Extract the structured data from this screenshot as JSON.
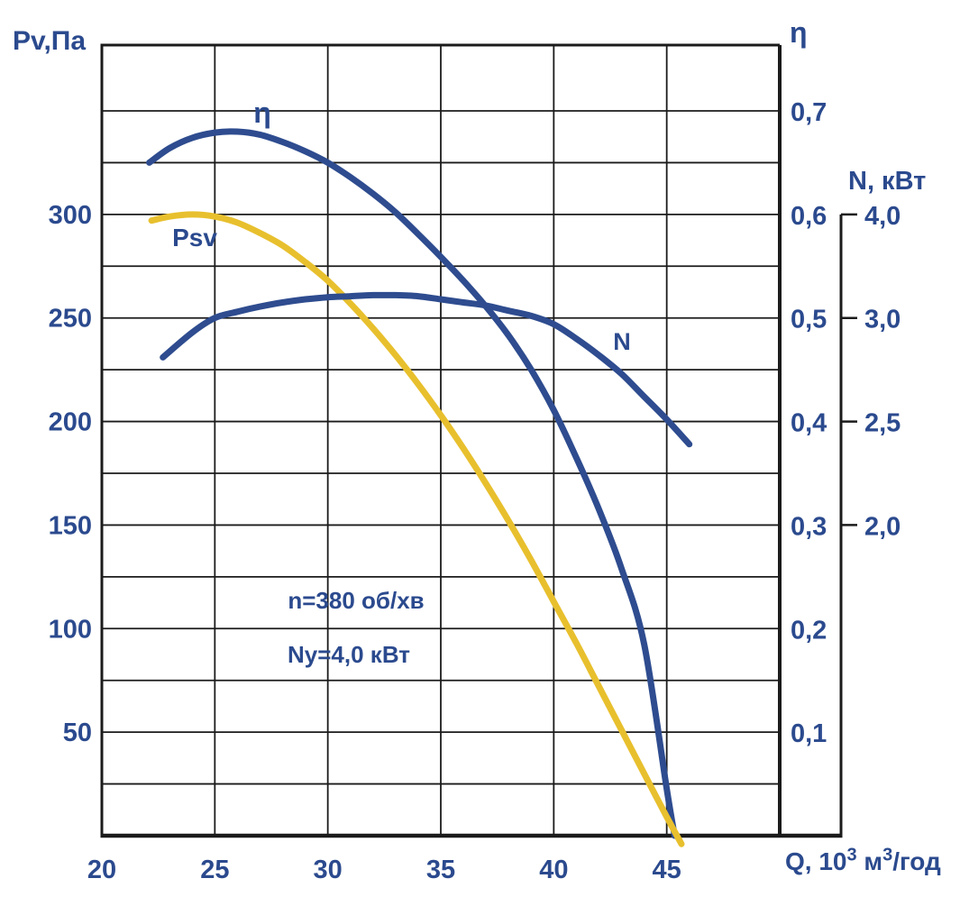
{
  "colors": {
    "navy": "#2E4C8F",
    "gold": "#E8C02E",
    "grid": "#1B1B1B",
    "text": "#2B4A8E",
    "background": "#FFFFFF"
  },
  "chart_data": {
    "type": "line",
    "title": "",
    "x_axis": {
      "title_parts": [
        "Q, 10",
        "3",
        " м",
        "3",
        "/год"
      ],
      "ticks": [
        {
          "label": "20",
          "q": 20
        },
        {
          "label": "25",
          "q": 25
        },
        {
          "label": "30",
          "q": 30
        },
        {
          "label": "35",
          "q": 35
        },
        {
          "label": "40",
          "q": 40
        },
        {
          "label": "45",
          "q": 45
        }
      ],
      "grid_q": [
        25,
        30,
        35,
        40,
        45
      ],
      "range": [
        20,
        50
      ],
      "grid": "on"
    },
    "y_left": {
      "label": "Pv,Па",
      "units": "Па",
      "range": [
        0,
        380
      ],
      "ticks": [
        {
          "label": "300",
          "eta": 0.6
        },
        {
          "label": "250",
          "eta": 0.5
        },
        {
          "label": "200",
          "eta": 0.4
        },
        {
          "label": "150",
          "eta": 0.3
        },
        {
          "label": "100",
          "eta": 0.2
        },
        {
          "label": "50",
          "eta": 0.1
        }
      ]
    },
    "y_right_eta": {
      "label": "η",
      "range": [
        0,
        0.76
      ],
      "grid_step": 0.05,
      "ticks": [
        {
          "label": "0,7",
          "v": 0.7
        },
        {
          "label": "0,6",
          "v": 0.6
        },
        {
          "label": "0,5",
          "v": 0.5
        },
        {
          "label": "0,4",
          "v": 0.4
        },
        {
          "label": "0,3",
          "v": 0.3
        },
        {
          "label": "0,2",
          "v": 0.2
        },
        {
          "label": "0,1",
          "v": 0.1
        }
      ]
    },
    "y_right_n": {
      "label": "N, кВт",
      "ticks": [
        {
          "label": "4,0",
          "n": 4.0
        },
        {
          "label": "3,0",
          "n": 3.0
        },
        {
          "label": "2,5",
          "n": 2.5
        },
        {
          "label": "2,0",
          "n": 2.0
        }
      ],
      "anchors": [
        {
          "n": 2.0,
          "eta": 0.3
        },
        {
          "n": 2.5,
          "eta": 0.4
        },
        {
          "n": 3.0,
          "eta": 0.5
        },
        {
          "n": 4.0,
          "eta": 0.6
        }
      ]
    },
    "series": [
      {
        "id": "eta",
        "name": "η",
        "axis": "eta",
        "color": "#2E4C8F",
        "points": [
          [
            22.1,
            0.65
          ],
          [
            23,
            0.664
          ],
          [
            24,
            0.674
          ],
          [
            25,
            0.679
          ],
          [
            26,
            0.68
          ],
          [
            27,
            0.677
          ],
          [
            28,
            0.67
          ],
          [
            29,
            0.661
          ],
          [
            30,
            0.65
          ],
          [
            31,
            0.636
          ],
          [
            32,
            0.62
          ],
          [
            33,
            0.602
          ],
          [
            34,
            0.581
          ],
          [
            35,
            0.559
          ],
          [
            36,
            0.536
          ],
          [
            37,
            0.511
          ],
          [
            38,
            0.483
          ],
          [
            39,
            0.45
          ],
          [
            40,
            0.411
          ],
          [
            41,
            0.365
          ],
          [
            42,
            0.315
          ],
          [
            43,
            0.258
          ],
          [
            44,
            0.185
          ],
          [
            45,
            0.045
          ],
          [
            45.35,
            0.0
          ]
        ]
      },
      {
        "id": "psv",
        "name": "Psv",
        "axis": "pv",
        "color": "#E8C02E",
        "points": [
          [
            22.2,
            297
          ],
          [
            23,
            299
          ],
          [
            24,
            300
          ],
          [
            25,
            299
          ],
          [
            26,
            296
          ],
          [
            27,
            291
          ],
          [
            28,
            285
          ],
          [
            29,
            277
          ],
          [
            30,
            268
          ],
          [
            31,
            257
          ],
          [
            32,
            245
          ],
          [
            33,
            232
          ],
          [
            34,
            218
          ],
          [
            35,
            203
          ],
          [
            36,
            187
          ],
          [
            37,
            170
          ],
          [
            38,
            152
          ],
          [
            39,
            133
          ],
          [
            40,
            113
          ],
          [
            41,
            93
          ],
          [
            42,
            72
          ],
          [
            43,
            51
          ],
          [
            44,
            30
          ],
          [
            45,
            9
          ],
          [
            45.65,
            -4
          ]
        ]
      },
      {
        "id": "n",
        "name": "N",
        "axis": "n",
        "color": "#2E4C8F",
        "points": [
          [
            22.7,
            2.81
          ],
          [
            24,
            2.93
          ],
          [
            25,
            3.0
          ],
          [
            26,
            3.06
          ],
          [
            27,
            3.11
          ],
          [
            28,
            3.15
          ],
          [
            29,
            3.18
          ],
          [
            30,
            3.2
          ],
          [
            31,
            3.21
          ],
          [
            32,
            3.22
          ],
          [
            33,
            3.22
          ],
          [
            34,
            3.21
          ],
          [
            35,
            3.18
          ],
          [
            36,
            3.15
          ],
          [
            37,
            3.12
          ],
          [
            38,
            3.07
          ],
          [
            39,
            3.02
          ],
          [
            40,
            2.97
          ],
          [
            41,
            2.9
          ],
          [
            42,
            2.82
          ],
          [
            43,
            2.73
          ],
          [
            44,
            2.62
          ],
          [
            45,
            2.51
          ],
          [
            46,
            2.39
          ]
        ]
      }
    ],
    "annotations": [
      {
        "text": "n=380 об/хв"
      },
      {
        "text": "Ny=4,0 кВт"
      }
    ],
    "legend_position": "inline-curve-labels"
  }
}
